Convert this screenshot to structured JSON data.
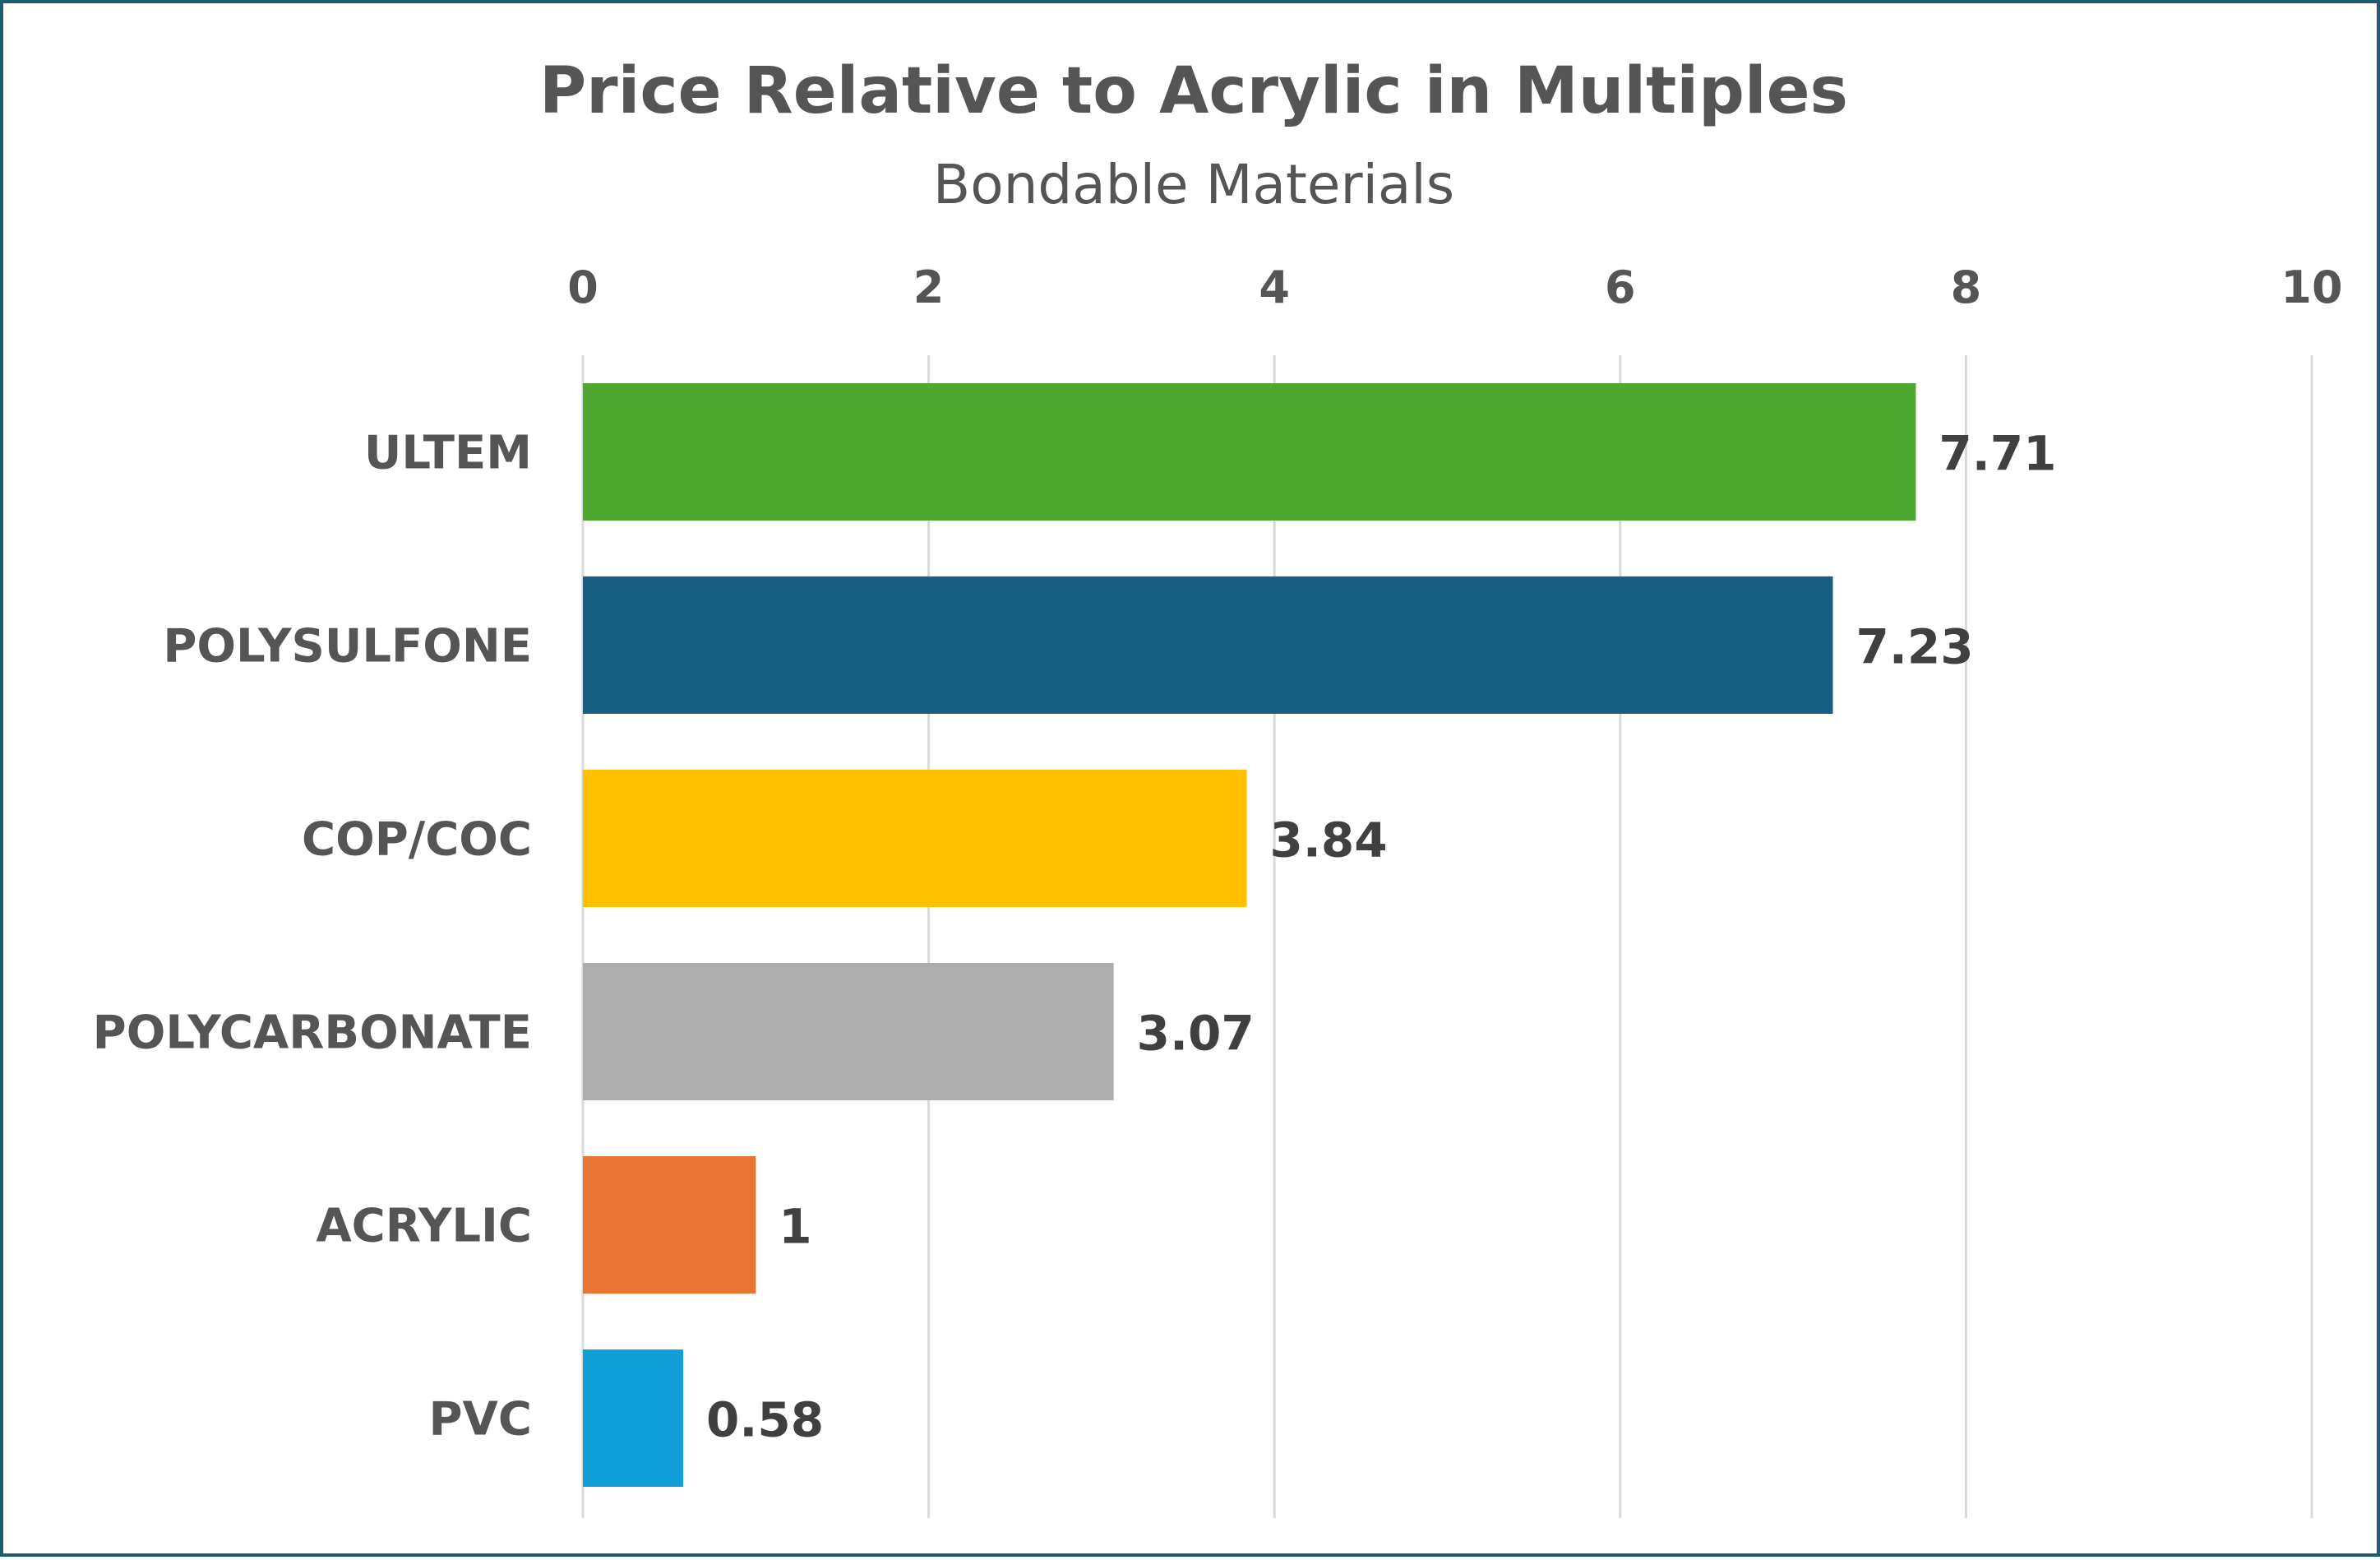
{
  "chart_data": {
    "type": "bar",
    "orientation": "horizontal",
    "title": "Price Relative to Acrylic in Multiples",
    "subtitle": "Bondable Materials",
    "xlabel": "",
    "ylabel": "",
    "xlim": [
      0,
      10
    ],
    "ticks": [
      "0",
      "2",
      "4",
      "6",
      "8",
      "10"
    ],
    "tick_values": [
      0,
      2,
      4,
      6,
      8,
      10
    ],
    "axis_position": "top",
    "grid": true,
    "legend": "none",
    "categories": [
      "ULTEM",
      "POLYSULFONE",
      "COP/COC",
      "POLYCARBONATE",
      "ACRYLIC",
      "PVC"
    ],
    "values": [
      7.71,
      7.23,
      3.84,
      3.07,
      1,
      0.58
    ],
    "value_labels": [
      "7.71",
      "7.23",
      "3.84",
      "3.07",
      "1",
      "0.58"
    ],
    "colors": [
      "#4ea72e",
      "#175f82",
      "#ffc000",
      "#adadad",
      "#e87433",
      "#109fd6"
    ]
  },
  "frame_color": "#1f5c73"
}
